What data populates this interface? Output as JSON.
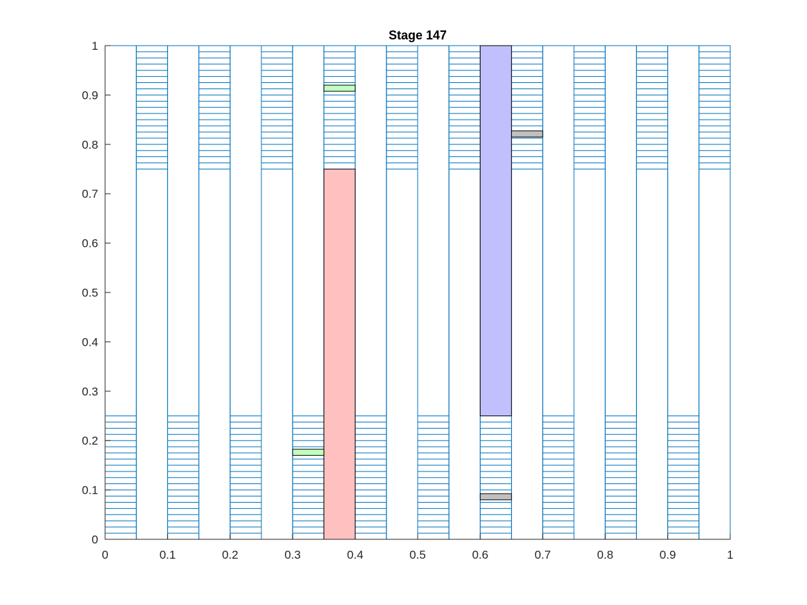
{
  "chart_data": {
    "type": "bar",
    "title": "Stage 147",
    "xlabel": "",
    "ylabel": "",
    "xlim": [
      0,
      1
    ],
    "ylim": [
      0,
      1
    ],
    "x_ticks": [
      0,
      0.1,
      0.2,
      0.3,
      0.4,
      0.5,
      0.6,
      0.7,
      0.8,
      0.9,
      1
    ],
    "x_tick_labels": [
      "0",
      "0.1",
      "0.2",
      "0.3",
      "0.4",
      "0.5",
      "0.6",
      "0.7",
      "0.8",
      "0.9",
      "1"
    ],
    "y_ticks": [
      0,
      0.1,
      0.2,
      0.3,
      0.4,
      0.5,
      0.6,
      0.7,
      0.8,
      0.9,
      1
    ],
    "y_tick_labels": [
      "0",
      "0.1",
      "0.2",
      "0.3",
      "0.4",
      "0.5",
      "0.6",
      "0.7",
      "0.8",
      "0.9",
      "1"
    ],
    "grid": false,
    "column_width": 0.05,
    "columns": [
      {
        "x0": 0.0,
        "y0": 0.0,
        "y1": 1.0
      },
      {
        "x0": 0.05,
        "y0": 0.0,
        "y1": 1.0
      },
      {
        "x0": 0.1,
        "y0": 0.0,
        "y1": 1.0
      },
      {
        "x0": 0.15,
        "y0": 0.0,
        "y1": 1.0
      },
      {
        "x0": 0.2,
        "y0": 0.0,
        "y1": 1.0
      },
      {
        "x0": 0.25,
        "y0": 0.0,
        "y1": 1.0
      },
      {
        "x0": 0.3,
        "y0": 0.0,
        "y1": 1.0
      },
      {
        "x0": 0.35,
        "y0": 0.0,
        "y1": 1.0
      },
      {
        "x0": 0.4,
        "y0": 0.0,
        "y1": 1.0
      },
      {
        "x0": 0.45,
        "y0": 0.0,
        "y1": 1.0
      },
      {
        "x0": 0.5,
        "y0": 0.0,
        "y1": 1.0
      },
      {
        "x0": 0.55,
        "y0": 0.0,
        "y1": 1.0
      },
      {
        "x0": 0.6,
        "y0": 0.0,
        "y1": 1.0
      },
      {
        "x0": 0.65,
        "y0": 0.0,
        "y1": 1.0
      },
      {
        "x0": 0.7,
        "y0": 0.0,
        "y1": 1.0
      },
      {
        "x0": 0.75,
        "y0": 0.0,
        "y1": 1.0
      },
      {
        "x0": 0.8,
        "y0": 0.0,
        "y1": 1.0
      },
      {
        "x0": 0.85,
        "y0": 0.0,
        "y1": 1.0
      },
      {
        "x0": 0.9,
        "y0": 0.0,
        "y1": 1.0
      },
      {
        "x0": 0.95,
        "y0": 0.0,
        "y1": 1.0
      }
    ],
    "stripe_spacing": 0.0125,
    "striped_bands": [
      {
        "x0": 0.0,
        "y0": 0.0,
        "y1": 0.25
      },
      {
        "x0": 0.1,
        "y0": 0.0,
        "y1": 0.25
      },
      {
        "x0": 0.2,
        "y0": 0.0,
        "y1": 0.25
      },
      {
        "x0": 0.3,
        "y0": 0.0,
        "y1": 0.25
      },
      {
        "x0": 0.4,
        "y0": 0.0,
        "y1": 0.25
      },
      {
        "x0": 0.5,
        "y0": 0.0,
        "y1": 0.25
      },
      {
        "x0": 0.6,
        "y0": 0.0,
        "y1": 0.25
      },
      {
        "x0": 0.7,
        "y0": 0.0,
        "y1": 0.25
      },
      {
        "x0": 0.8,
        "y0": 0.0,
        "y1": 0.25
      },
      {
        "x0": 0.9,
        "y0": 0.0,
        "y1": 0.25
      },
      {
        "x0": 0.05,
        "y0": 0.75,
        "y1": 1.0
      },
      {
        "x0": 0.15,
        "y0": 0.75,
        "y1": 1.0
      },
      {
        "x0": 0.25,
        "y0": 0.75,
        "y1": 1.0
      },
      {
        "x0": 0.35,
        "y0": 0.75,
        "y1": 1.0
      },
      {
        "x0": 0.45,
        "y0": 0.75,
        "y1": 1.0
      },
      {
        "x0": 0.55,
        "y0": 0.75,
        "y1": 1.0
      },
      {
        "x0": 0.65,
        "y0": 0.75,
        "y1": 1.0
      },
      {
        "x0": 0.75,
        "y0": 0.75,
        "y1": 1.0
      },
      {
        "x0": 0.85,
        "y0": 0.75,
        "y1": 1.0
      },
      {
        "x0": 0.95,
        "y0": 0.75,
        "y1": 1.0
      }
    ],
    "filled_blocks": [
      {
        "x0": 0.35,
        "x1": 0.4,
        "y0": 0.0,
        "y1": 0.75,
        "color": "#ffc0c0"
      },
      {
        "x0": 0.6,
        "x1": 0.65,
        "y0": 0.25,
        "y1": 1.0,
        "color": "#c0c0ff"
      }
    ],
    "markers": [
      {
        "x0": 0.35,
        "x1": 0.4,
        "y0": 0.9075,
        "y1": 0.92,
        "color": "#c0ffc0"
      },
      {
        "x0": 0.3,
        "x1": 0.35,
        "y0": 0.17,
        "y1": 0.1825,
        "color": "#c0ffc0"
      },
      {
        "x0": 0.65,
        "x1": 0.7,
        "y0": 0.815,
        "y1": 0.8275,
        "color": "#c0c0c0"
      },
      {
        "x0": 0.6,
        "x1": 0.65,
        "y0": 0.08,
        "y1": 0.0925,
        "color": "#c0c0c0"
      }
    ],
    "colors": {
      "outline": "#0072bd",
      "block_edge": "#000000",
      "axis": "#262626"
    }
  }
}
